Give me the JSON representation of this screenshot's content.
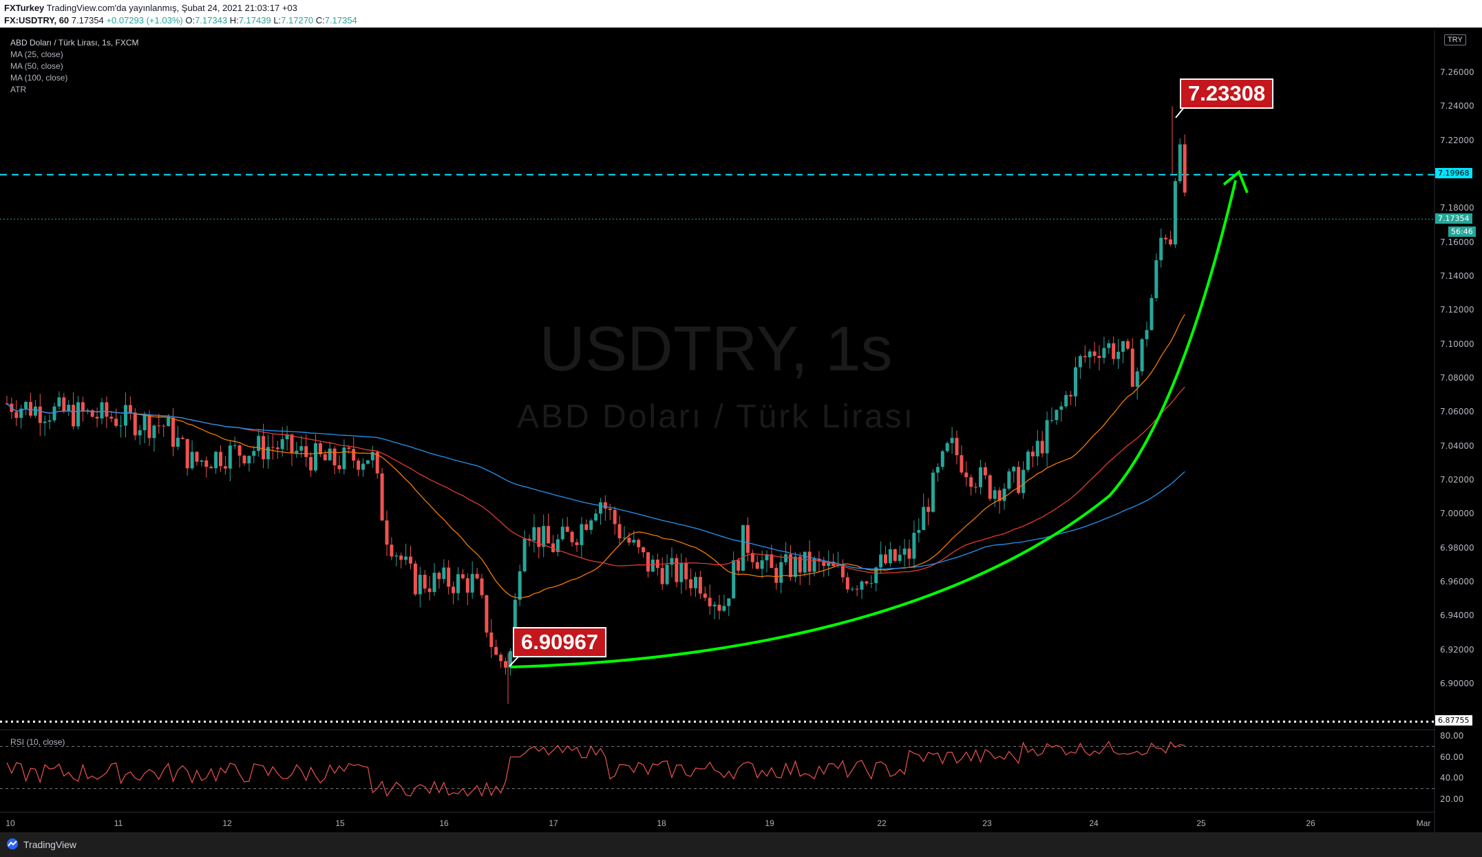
{
  "header": {
    "publisher": "FXTurkey",
    "published_text": "TradingView.com'da yayınlanmış, Şubat 24, 2021 21:03:17 +03",
    "symbol": "FX:USDTRY, 60",
    "last": "7.17354",
    "change": "+0.07293 (+1.03%)",
    "open_label": "O:",
    "open": "7.17343",
    "high_label": "H:",
    "high": "7.17439",
    "low_label": "L:",
    "low": "7.17270",
    "close_label": "C:",
    "close": "7.17354"
  },
  "legend": {
    "title": "ABD Doları / Türk Lirası, 1s, FXCM",
    "ma25": "MA (25, close)",
    "ma50": "MA (50, close)",
    "ma100": "MA (100, close)",
    "atr": "ATR",
    "rsi": "RSI (10, close)"
  },
  "watermark": {
    "symbol": "USDTRY, 1s",
    "name": "ABD Doları / Türk Lirası"
  },
  "axis": {
    "currency_button": "TRY",
    "price_labels": [
      "7.26000",
      "7.24000",
      "7.22000",
      "7.18000",
      "7.16000",
      "7.14000",
      "7.12000",
      "7.10000",
      "7.08000",
      "7.06000",
      "7.04000",
      "7.02000",
      "7.00000",
      "6.98000",
      "6.96000",
      "6.94000",
      "6.92000",
      "6.90000"
    ],
    "rsi_labels": [
      "80.00",
      "60.00",
      "40.00",
      "20.00"
    ],
    "time_labels": [
      "10",
      "11",
      "12",
      "15",
      "16",
      "17",
      "18",
      "19",
      "22",
      "23",
      "24",
      "25",
      "26",
      "Mar"
    ],
    "current_price_tag": "7.17354",
    "countdown_tag": "56:46",
    "level_tag_cyan": "7.19968",
    "level_tag_white": "6.87755",
    "top_tag": "7.2"
  },
  "annotations": {
    "high_callout": "7.23308",
    "low_callout": "6.90967"
  },
  "footer": {
    "brand": "TradingView"
  },
  "colors": {
    "background": "#000000",
    "up": "#26a69a",
    "down": "#ef5350",
    "ma25": "#f57c00",
    "ma50": "#e53935",
    "ma100": "#2196f3",
    "arrow": "#00ff00",
    "level_cyan": "#00e5ff",
    "rsi": "#ef5350"
  },
  "chart_data": {
    "type": "candlestick",
    "y_range": [
      6.877,
      7.275
    ],
    "rsi_range": [
      10,
      85
    ],
    "x_categories": [
      "10",
      "11",
      "12",
      "15",
      "16",
      "17",
      "18",
      "19",
      "22",
      "23",
      "24",
      "25",
      "26",
      "Mar"
    ],
    "key_points": [
      {
        "label": "low",
        "value": 6.90967
      },
      {
        "label": "high",
        "value": 7.23308
      }
    ],
    "levels": [
      7.19968,
      6.87755
    ],
    "ma_series": [
      "MA (25, close)",
      "MA (50, close)",
      "MA (100, close)"
    ]
  }
}
